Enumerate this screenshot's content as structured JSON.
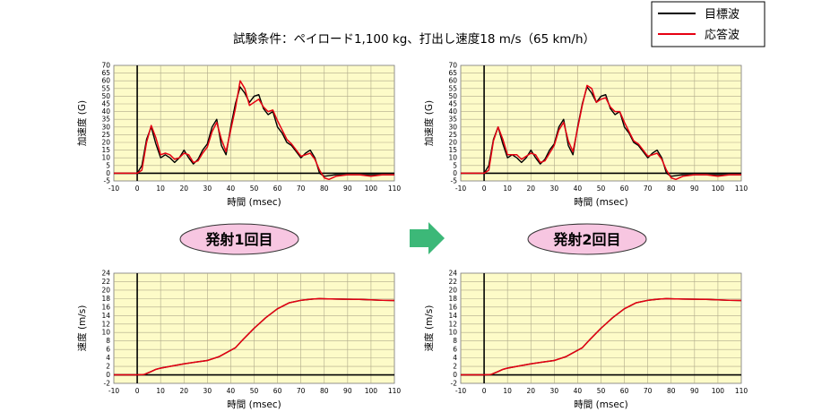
{
  "header": {
    "title": "試験条件：ペイロード1,100 kg、打出し速度18 m/s（65 km/h）"
  },
  "legend": {
    "items": [
      {
        "label": "目標波",
        "color": "#000000"
      },
      {
        "label": "応答波",
        "color": "#e60012"
      }
    ]
  },
  "labels": {
    "shot1": "発射1回目",
    "shot2": "発射2回目",
    "arrow_icon": "right-arrow-icon"
  },
  "colors": {
    "plot_bg": "#fdfbc8",
    "grid": "#b0aa8a",
    "target": "#000000",
    "response": "#e60012",
    "badge_fill": "#f7c6e1",
    "arrow": "#3cb878"
  },
  "chart_data": [
    {
      "id": "accel-shot1",
      "type": "line",
      "xlabel": "時間 (msec)",
      "ylabel": "加速度 (G)",
      "xlim": [
        -10,
        110
      ],
      "ylim": [
        -5,
        70
      ],
      "xticks": [
        "-10",
        "0",
        "10",
        "20",
        "30",
        "40",
        "50",
        "60",
        "70",
        "80",
        "90",
        "100",
        "110"
      ],
      "yticks": [
        "70",
        "65",
        "60",
        "55",
        "50",
        "45",
        "40",
        "35",
        "30",
        "25",
        "20",
        "15",
        "10",
        "5",
        "0",
        "-5"
      ],
      "grid": true,
      "series": [
        {
          "name": "目標波",
          "color": "#000000",
          "x": [
            -10,
            0,
            2,
            4,
            6,
            8,
            10,
            12,
            14,
            16,
            18,
            20,
            22,
            24,
            26,
            28,
            30,
            32,
            34,
            36,
            38,
            40,
            42,
            44,
            46,
            48,
            50,
            52,
            54,
            56,
            58,
            60,
            62,
            64,
            66,
            68,
            70,
            72,
            74,
            76,
            78,
            80,
            85,
            90,
            95,
            100,
            105,
            110
          ],
          "y": [
            0,
            0,
            5,
            22,
            30,
            19,
            10,
            12,
            10,
            7,
            10,
            15,
            10,
            6,
            9,
            15,
            19,
            30,
            35,
            18,
            12,
            30,
            45,
            56,
            52,
            46,
            50,
            51,
            42,
            38,
            40,
            30,
            26,
            20,
            18,
            14,
            10,
            13,
            15,
            10,
            0,
            -2,
            -1,
            -1,
            -1,
            -1,
            -1,
            -1
          ]
        },
        {
          "name": "応答波",
          "color": "#e60012",
          "x": [
            -10,
            0,
            2,
            4,
            6,
            8,
            10,
            12,
            14,
            16,
            18,
            20,
            22,
            24,
            26,
            28,
            30,
            32,
            34,
            36,
            38,
            40,
            42,
            44,
            46,
            48,
            50,
            52,
            54,
            56,
            58,
            60,
            62,
            64,
            66,
            68,
            70,
            72,
            74,
            76,
            78,
            80,
            82,
            85,
            90,
            95,
            100,
            105,
            110
          ],
          "y": [
            0,
            0,
            2,
            20,
            31,
            23,
            12,
            13,
            12,
            9,
            10,
            13,
            12,
            7,
            8,
            13,
            17,
            27,
            33,
            22,
            14,
            28,
            42,
            60,
            55,
            44,
            46,
            48,
            43,
            40,
            41,
            34,
            28,
            22,
            19,
            15,
            11,
            12,
            13,
            9,
            2,
            -3,
            -4,
            -2,
            -1,
            -1,
            -2,
            -1,
            -1
          ]
        }
      ]
    },
    {
      "id": "accel-shot2",
      "type": "line",
      "xlabel": "時間 (msec)",
      "ylabel": "加速度 (G)",
      "xlim": [
        -10,
        110
      ],
      "ylim": [
        -5,
        70
      ],
      "xticks": [
        "-10",
        "0",
        "10",
        "20",
        "30",
        "40",
        "50",
        "60",
        "70",
        "80",
        "90",
        "100",
        "110"
      ],
      "yticks": [
        "70",
        "65",
        "60",
        "55",
        "50",
        "45",
        "40",
        "35",
        "30",
        "25",
        "20",
        "15",
        "10",
        "5",
        "0",
        "-5"
      ],
      "grid": true,
      "series": [
        {
          "name": "目標波",
          "color": "#000000",
          "x": [
            -10,
            0,
            2,
            4,
            6,
            8,
            10,
            12,
            14,
            16,
            18,
            20,
            22,
            24,
            26,
            28,
            30,
            32,
            34,
            36,
            38,
            40,
            42,
            44,
            46,
            48,
            50,
            52,
            54,
            56,
            58,
            60,
            62,
            64,
            66,
            68,
            70,
            72,
            74,
            76,
            78,
            80,
            85,
            90,
            95,
            100,
            105,
            110
          ],
          "y": [
            0,
            0,
            5,
            22,
            30,
            19,
            10,
            12,
            10,
            7,
            10,
            15,
            10,
            6,
            9,
            15,
            19,
            30,
            35,
            18,
            12,
            30,
            45,
            56,
            52,
            46,
            50,
            51,
            42,
            38,
            40,
            30,
            26,
            20,
            18,
            14,
            10,
            13,
            15,
            10,
            0,
            -2,
            -1,
            -1,
            -1,
            -1,
            -1,
            -1
          ]
        },
        {
          "name": "応答波",
          "color": "#e60012",
          "x": [
            -10,
            0,
            2,
            4,
            6,
            8,
            10,
            12,
            14,
            16,
            18,
            20,
            22,
            24,
            26,
            28,
            30,
            32,
            34,
            36,
            38,
            40,
            42,
            44,
            46,
            48,
            50,
            52,
            54,
            56,
            58,
            60,
            62,
            64,
            66,
            68,
            70,
            72,
            74,
            76,
            78,
            80,
            82,
            85,
            90,
            95,
            100,
            105,
            110
          ],
          "y": [
            0,
            0,
            2,
            21,
            30,
            22,
            12,
            12,
            12,
            9,
            11,
            13,
            12,
            7,
            8,
            13,
            18,
            28,
            33,
            21,
            14,
            29,
            44,
            57,
            55,
            46,
            48,
            49,
            43,
            40,
            40,
            33,
            27,
            21,
            19,
            15,
            11,
            12,
            13,
            9,
            2,
            -3,
            -4,
            -2,
            -1,
            -1,
            -2,
            -1,
            -1
          ]
        }
      ]
    },
    {
      "id": "velocity-shot1",
      "type": "line",
      "xlabel": "時間 (msec)",
      "ylabel": "速度 (m/s)",
      "xlim": [
        -10,
        110
      ],
      "ylim": [
        -2,
        24
      ],
      "xticks": [
        "-10",
        "0",
        "10",
        "20",
        "30",
        "40",
        "50",
        "60",
        "70",
        "80",
        "90",
        "100",
        "110"
      ],
      "yticks": [
        "24",
        "22",
        "20",
        "18",
        "16",
        "14",
        "12",
        "10",
        "8",
        "6",
        "4",
        "2",
        "0",
        "-2"
      ],
      "grid": true,
      "series": [
        {
          "name": "目標波",
          "color": "#000000",
          "x": [
            -10,
            0,
            3,
            6,
            8,
            10,
            15,
            20,
            25,
            30,
            35,
            40,
            42,
            45,
            50,
            55,
            60,
            65,
            70,
            75,
            78,
            80,
            85,
            90,
            95,
            100,
            105,
            110
          ],
          "y": [
            0,
            0,
            0.1,
            0.8,
            1.3,
            1.6,
            2.1,
            2.6,
            3.0,
            3.4,
            4.3,
            5.8,
            6.4,
            8.2,
            11.0,
            13.5,
            15.6,
            17.0,
            17.6,
            17.9,
            18.0,
            17.95,
            17.9,
            17.85,
            17.8,
            17.7,
            17.6,
            17.55
          ]
        },
        {
          "name": "応答波",
          "color": "#e60012",
          "x": [
            -10,
            0,
            3,
            6,
            8,
            10,
            15,
            20,
            25,
            30,
            35,
            40,
            42,
            45,
            50,
            55,
            60,
            65,
            70,
            75,
            78,
            80,
            85,
            90,
            95,
            100,
            105,
            110
          ],
          "y": [
            0,
            0,
            0.1,
            0.8,
            1.3,
            1.6,
            2.1,
            2.6,
            3.0,
            3.4,
            4.3,
            5.8,
            6.4,
            8.2,
            11.0,
            13.5,
            15.6,
            17.0,
            17.6,
            17.9,
            18.0,
            17.95,
            17.9,
            17.85,
            17.8,
            17.7,
            17.6,
            17.55
          ]
        }
      ]
    },
    {
      "id": "velocity-shot2",
      "type": "line",
      "xlabel": "時間 (msec)",
      "ylabel": "速度 (m/s)",
      "xlim": [
        -10,
        110
      ],
      "ylim": [
        -2,
        24
      ],
      "xticks": [
        "-10",
        "0",
        "10",
        "20",
        "30",
        "40",
        "50",
        "60",
        "70",
        "80",
        "90",
        "100",
        "110"
      ],
      "yticks": [
        "24",
        "22",
        "20",
        "18",
        "16",
        "14",
        "12",
        "10",
        "8",
        "6",
        "4",
        "2",
        "0",
        "-2"
      ],
      "grid": true,
      "series": [
        {
          "name": "目標波",
          "color": "#000000",
          "x": [
            -10,
            0,
            3,
            6,
            8,
            10,
            15,
            20,
            25,
            30,
            35,
            40,
            42,
            45,
            50,
            55,
            60,
            65,
            70,
            75,
            78,
            80,
            85,
            90,
            95,
            100,
            105,
            110
          ],
          "y": [
            0,
            0,
            0.1,
            0.8,
            1.3,
            1.6,
            2.1,
            2.6,
            3.0,
            3.4,
            4.3,
            5.8,
            6.4,
            8.2,
            11.0,
            13.5,
            15.6,
            17.0,
            17.6,
            17.9,
            18.0,
            17.95,
            17.9,
            17.85,
            17.8,
            17.7,
            17.6,
            17.55
          ]
        },
        {
          "name": "応答波",
          "color": "#e60012",
          "x": [
            -10,
            0,
            3,
            6,
            8,
            10,
            15,
            20,
            25,
            30,
            35,
            40,
            42,
            45,
            50,
            55,
            60,
            65,
            70,
            75,
            78,
            80,
            85,
            90,
            95,
            100,
            105,
            110
          ],
          "y": [
            0,
            0,
            0.1,
            0.8,
            1.3,
            1.6,
            2.1,
            2.6,
            3.0,
            3.4,
            4.3,
            5.8,
            6.4,
            8.2,
            11.0,
            13.5,
            15.6,
            17.0,
            17.6,
            17.9,
            18.0,
            17.95,
            17.9,
            17.85,
            17.8,
            17.7,
            17.6,
            17.55
          ]
        }
      ]
    }
  ]
}
